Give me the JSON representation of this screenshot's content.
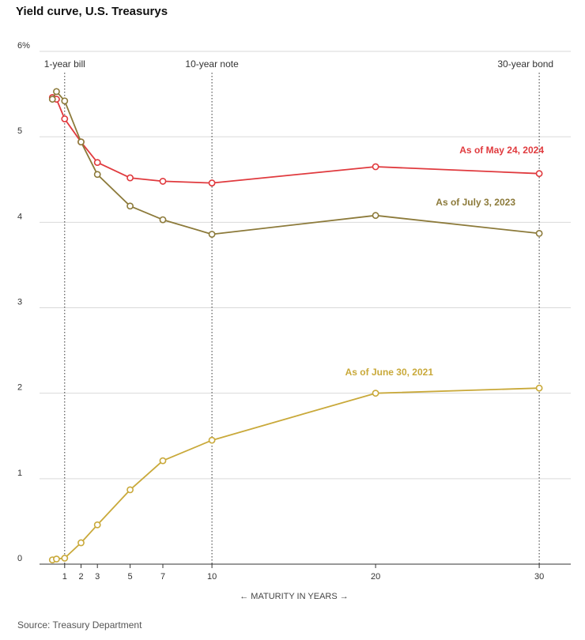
{
  "title": "Yield curve, U.S. Treasurys",
  "source": "Source: Treasury Department",
  "chart_data": {
    "type": "line",
    "xlabel": "← MATURITY IN YEARS →",
    "ylabel": "",
    "ylim": [
      0,
      6
    ],
    "y_ticks": [
      0,
      1,
      2,
      3,
      4,
      5,
      6
    ],
    "y_tick_labels": [
      "0",
      "1",
      "2",
      "3",
      "4",
      "5",
      "6%"
    ],
    "x_ticks": [
      1,
      2,
      3,
      5,
      7,
      10,
      20,
      30
    ],
    "x_tick_labels": [
      "1",
      "2",
      "3",
      "5",
      "7",
      "10",
      "20",
      "30"
    ],
    "grid": "horizontal",
    "reference_lines": [
      {
        "x": 1,
        "label": "1-year bill"
      },
      {
        "x": 10,
        "label": "10-year note"
      },
      {
        "x": 30,
        "label": "30-year bond"
      }
    ],
    "series": [
      {
        "name": "As of May 24, 2024",
        "color": "#e03a3e",
        "x": [
          0.25,
          0.5,
          1,
          2,
          3,
          5,
          7,
          10,
          20,
          30
        ],
        "y": [
          5.46,
          5.44,
          5.21,
          4.94,
          4.7,
          4.52,
          4.48,
          4.46,
          4.65,
          4.57
        ]
      },
      {
        "name": "As of July 3, 2023",
        "color": "#8c7a3a",
        "x": [
          0.25,
          0.5,
          1,
          2,
          3,
          5,
          7,
          10,
          20,
          30
        ],
        "y": [
          5.44,
          5.53,
          5.42,
          4.94,
          4.56,
          4.19,
          4.03,
          3.86,
          4.08,
          3.87
        ]
      },
      {
        "name": "As of June 30, 2021",
        "color": "#c9a93a",
        "x": [
          0.25,
          0.5,
          1,
          2,
          3,
          5,
          7,
          10,
          20,
          30
        ],
        "y": [
          0.05,
          0.06,
          0.07,
          0.25,
          0.46,
          0.87,
          1.21,
          1.45,
          2.0,
          2.06
        ]
      }
    ]
  }
}
